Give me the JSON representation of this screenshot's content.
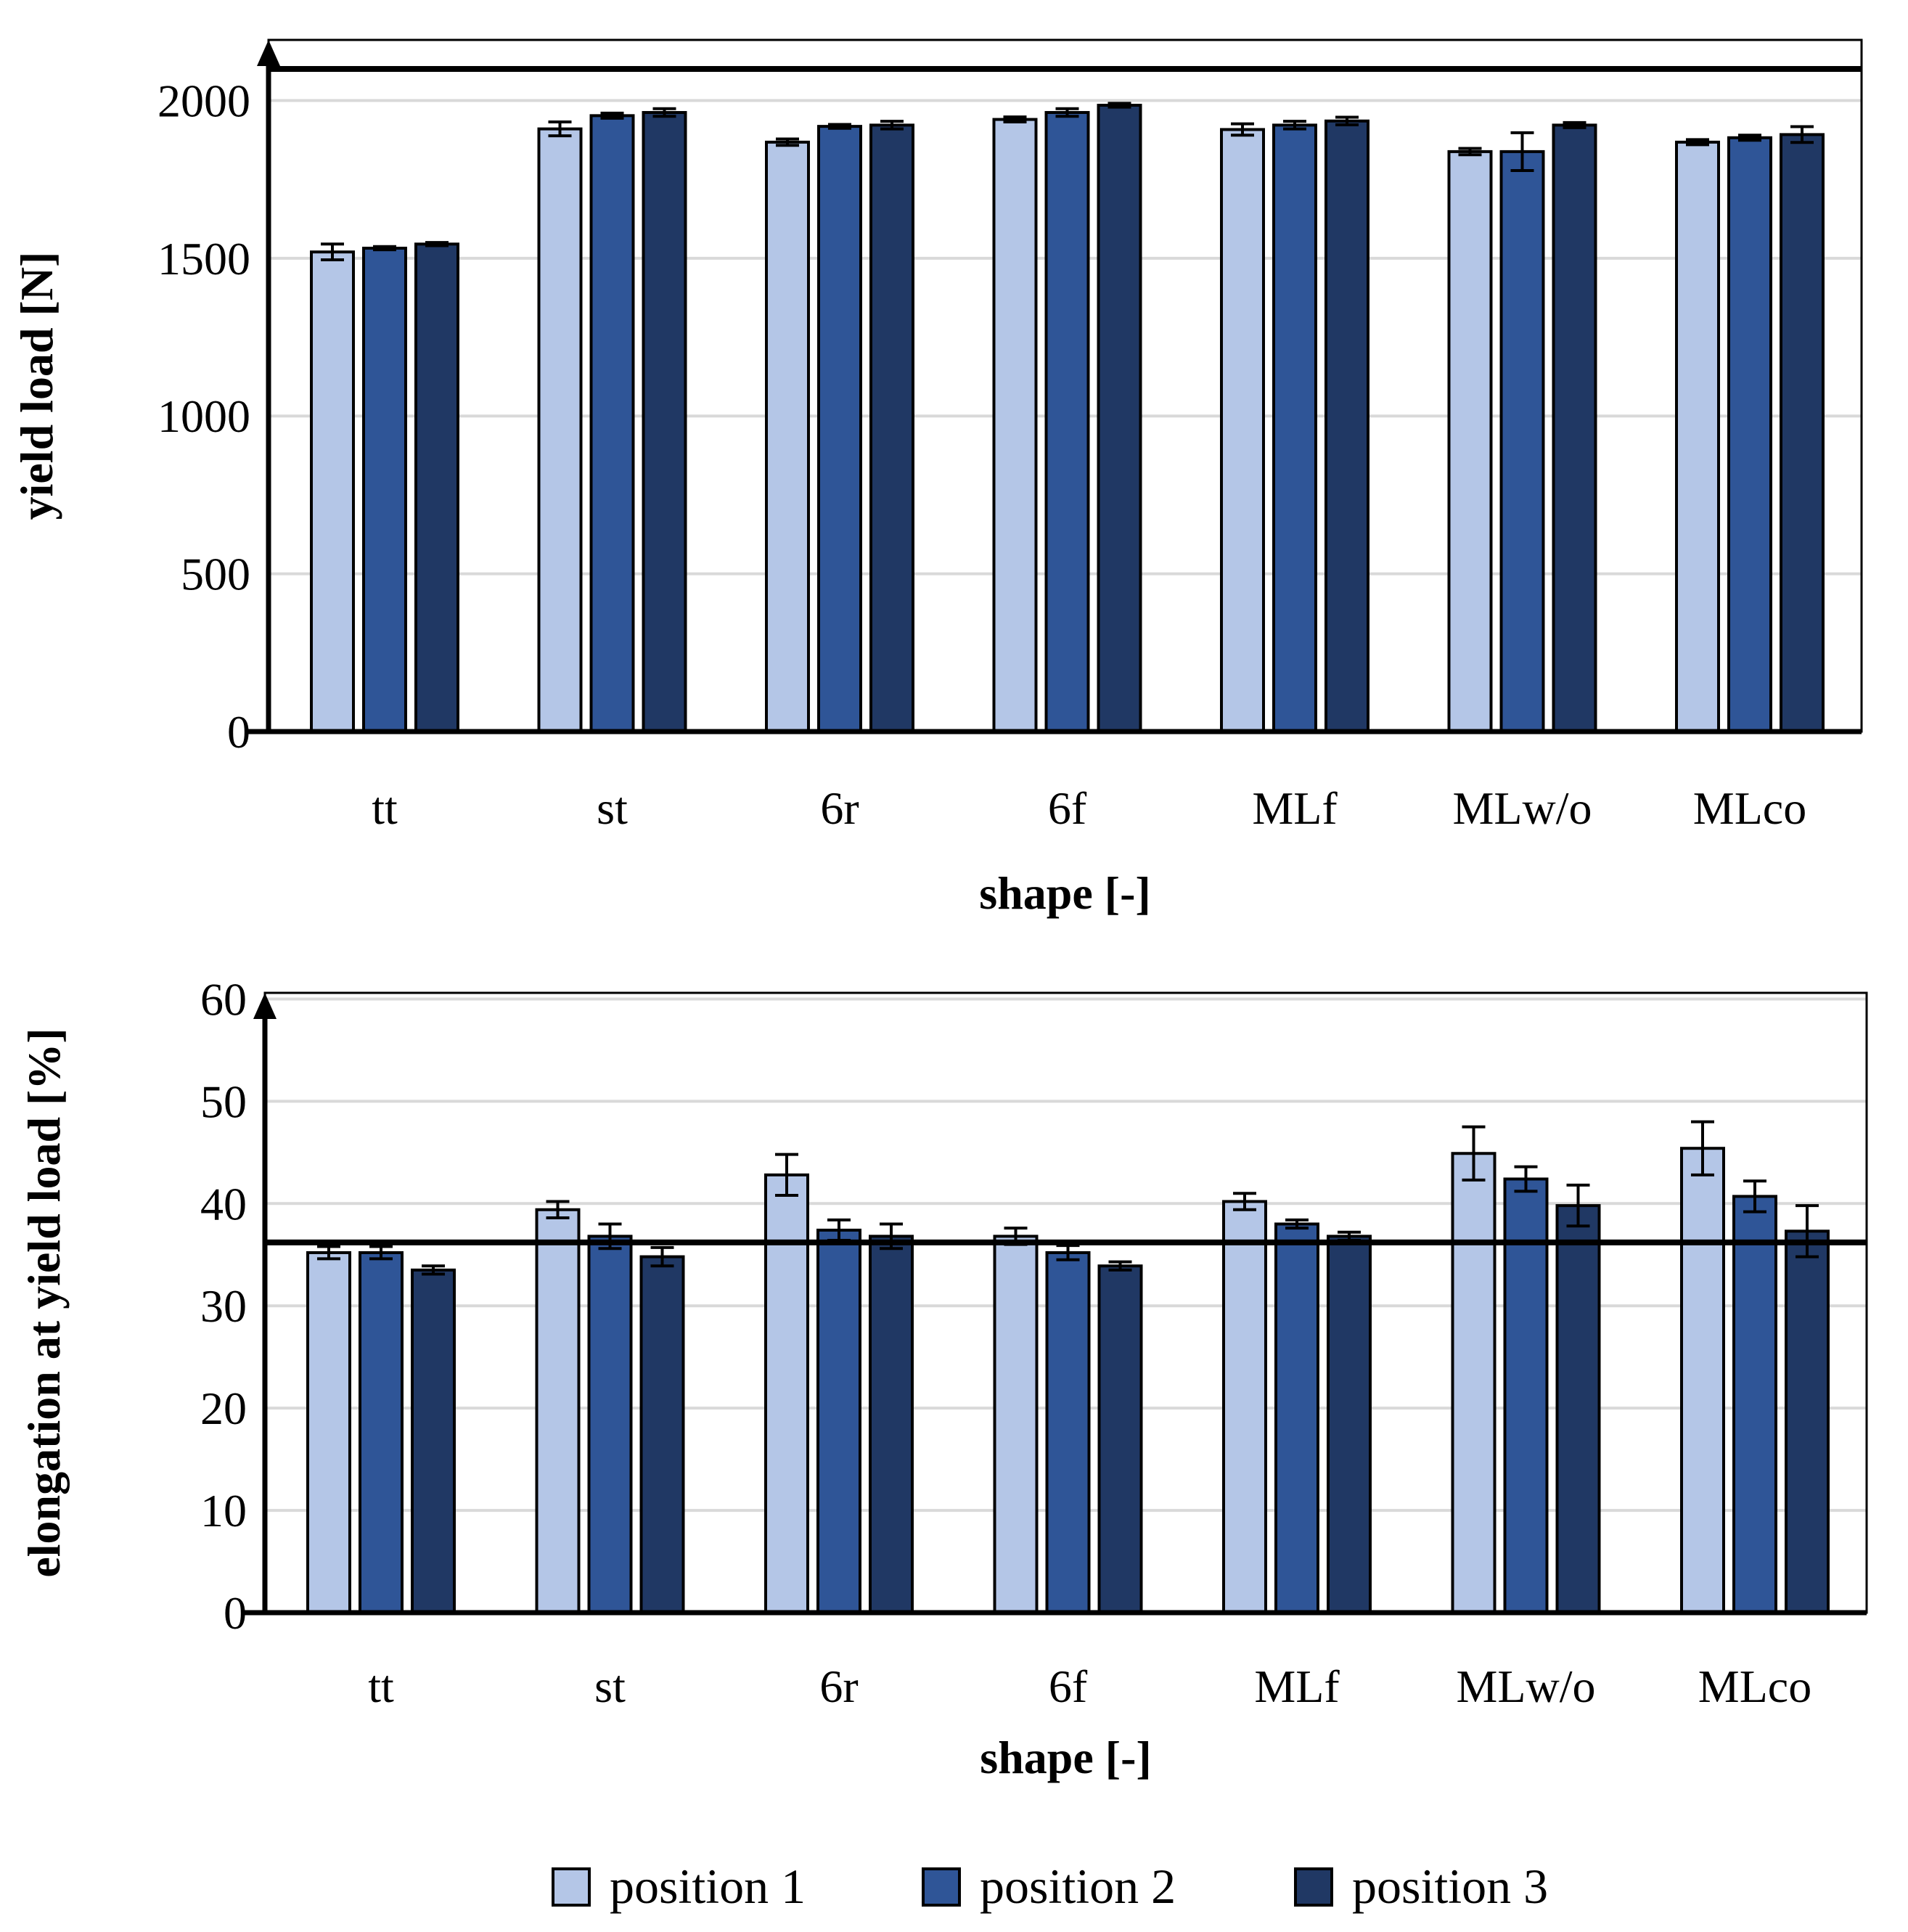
{
  "colors": {
    "position_1": "#b4c6e7",
    "position_2": "#2f5597",
    "position_3": "#203864",
    "gridline": "#d9d9d9",
    "axis": "#000000"
  },
  "legend": {
    "placement": "bottom-center",
    "items": [
      "position 1",
      "position 2",
      "position 3"
    ]
  },
  "chart_data": [
    {
      "type": "bar",
      "title": "",
      "xlabel": "shape [-]",
      "ylabel": "yield load [N]",
      "ylim": [
        0,
        2000
      ],
      "yticks": [
        0,
        500,
        1000,
        1500,
        2000
      ],
      "grid": true,
      "reference_line": 2100,
      "categories": [
        "tt",
        "st",
        "6r",
        "6f",
        "MLf",
        "MLw/o",
        "MLco"
      ],
      "series": [
        {
          "name": "position 1",
          "values": [
            1520,
            1910,
            1868,
            1940,
            1908,
            1838,
            1868
          ],
          "errors": [
            25,
            22,
            10,
            8,
            18,
            10,
            8
          ]
        },
        {
          "name": "position 2",
          "values": [
            1532,
            1952,
            1918,
            1962,
            1922,
            1838,
            1882
          ],
          "errors": [
            5,
            8,
            6,
            12,
            12,
            60,
            8
          ]
        },
        {
          "name": "position 3",
          "values": [
            1545,
            1962,
            1922,
            1985,
            1935,
            1922,
            1892
          ],
          "errors": [
            5,
            12,
            12,
            6,
            12,
            8,
            25
          ]
        }
      ]
    },
    {
      "type": "bar",
      "title": "",
      "xlabel": "shape [-]",
      "ylabel": "elongation at yield load [%]",
      "ylim": [
        0,
        60
      ],
      "yticks": [
        0,
        10,
        20,
        30,
        40,
        50,
        60
      ],
      "grid": true,
      "reference_line": 36.2,
      "categories": [
        "tt",
        "st",
        "6r",
        "6f",
        "MLf",
        "MLw/o",
        "MLco"
      ],
      "series": [
        {
          "name": "position 1",
          "values": [
            35.2,
            39.4,
            42.8,
            36.8,
            40.2,
            44.9,
            45.4
          ],
          "errors": [
            0.6,
            0.8,
            2.0,
            0.8,
            0.8,
            2.6,
            2.6
          ]
        },
        {
          "name": "position 2",
          "values": [
            35.2,
            36.8,
            37.4,
            35.2,
            38.0,
            42.4,
            40.7
          ],
          "errors": [
            0.6,
            1.2,
            1.0,
            0.7,
            0.4,
            1.2,
            1.5
          ]
        },
        {
          "name": "position 3",
          "values": [
            33.5,
            34.8,
            36.8,
            33.9,
            36.8,
            39.8,
            37.3
          ],
          "errors": [
            0.4,
            0.9,
            1.2,
            0.4,
            0.4,
            2.0,
            2.5
          ]
        }
      ]
    }
  ]
}
